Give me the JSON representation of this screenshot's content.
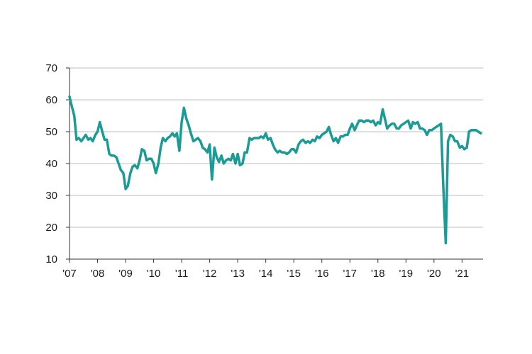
{
  "chart_data": {
    "type": "line",
    "title": "",
    "xlabel": "",
    "ylabel": "",
    "ylim": [
      10,
      70
    ],
    "yticks": [
      10,
      20,
      30,
      40,
      50,
      60,
      70
    ],
    "xlim": [
      2007.0,
      2021.75
    ],
    "xticks": [
      {
        "label": "'07",
        "value": 2007
      },
      {
        "label": "'08",
        "value": 2008
      },
      {
        "label": "'09",
        "value": 2009
      },
      {
        "label": "'10",
        "value": 2010
      },
      {
        "label": "'11",
        "value": 2011
      },
      {
        "label": "'12",
        "value": 2012
      },
      {
        "label": "'13",
        "value": 2013
      },
      {
        "label": "'14",
        "value": 2014
      },
      {
        "label": "'15",
        "value": 2015
      },
      {
        "label": "'16",
        "value": 2016
      },
      {
        "label": "'17",
        "value": 2017
      },
      {
        "label": "'18",
        "value": 2018
      },
      {
        "label": "'19",
        "value": 2019
      },
      {
        "label": "'20",
        "value": 2020
      },
      {
        "label": "'21",
        "value": 2021
      }
    ],
    "grid": true,
    "legend": false,
    "line_color": "#1a9b96",
    "series": [
      {
        "x": [
          2007.0,
          2007.08,
          2007.17,
          2007.25,
          2007.33,
          2007.42,
          2007.5,
          2007.58,
          2007.67,
          2007.75,
          2007.83,
          2007.92,
          2008.0,
          2008.08,
          2008.17,
          2008.25,
          2008.33,
          2008.42,
          2008.5,
          2008.58,
          2008.67,
          2008.75,
          2008.83,
          2008.92,
          2009.0,
          2009.08,
          2009.17,
          2009.25,
          2009.33,
          2009.42,
          2009.5,
          2009.58,
          2009.67,
          2009.75,
          2009.83,
          2009.92,
          2010.0,
          2010.08,
          2010.17,
          2010.25,
          2010.33,
          2010.42,
          2010.5,
          2010.58,
          2010.67,
          2010.75,
          2010.83,
          2010.92,
          2011.0,
          2011.08,
          2011.17,
          2011.25,
          2011.33,
          2011.42,
          2011.5,
          2011.58,
          2011.67,
          2011.75,
          2011.83,
          2011.92,
          2012.0,
          2012.08,
          2012.17,
          2012.25,
          2012.33,
          2012.42,
          2012.5,
          2012.58,
          2012.67,
          2012.75,
          2012.83,
          2012.92,
          2013.0,
          2013.08,
          2013.17,
          2013.25,
          2013.33,
          2013.42,
          2013.5,
          2013.58,
          2013.67,
          2013.75,
          2013.83,
          2013.92,
          2014.0,
          2014.08,
          2014.17,
          2014.25,
          2014.33,
          2014.42,
          2014.5,
          2014.58,
          2014.67,
          2014.75,
          2014.83,
          2014.92,
          2015.0,
          2015.08,
          2015.17,
          2015.25,
          2015.33,
          2015.42,
          2015.5,
          2015.58,
          2015.67,
          2015.75,
          2015.83,
          2015.92,
          2016.0,
          2016.08,
          2016.17,
          2016.25,
          2016.33,
          2016.42,
          2016.5,
          2016.58,
          2016.67,
          2016.75,
          2016.83,
          2016.92,
          2017.0,
          2017.08,
          2017.17,
          2017.25,
          2017.33,
          2017.42,
          2017.5,
          2017.58,
          2017.67,
          2017.75,
          2017.83,
          2017.92,
          2018.0,
          2018.08,
          2018.17,
          2018.25,
          2018.33,
          2018.42,
          2018.5,
          2018.58,
          2018.67,
          2018.75,
          2018.83,
          2018.92,
          2019.0,
          2019.08,
          2019.17,
          2019.25,
          2019.33,
          2019.42,
          2019.5,
          2019.58,
          2019.67,
          2019.75,
          2019.83,
          2019.92,
          2020.0,
          2020.08,
          2020.17,
          2020.25,
          2020.33,
          2020.42,
          2020.5,
          2020.58,
          2020.67,
          2020.75,
          2020.83,
          2020.92,
          2021.0,
          2021.08,
          2021.17,
          2021.25,
          2021.33,
          2021.42,
          2021.5,
          2021.58,
          2021.67
        ],
        "values": [
          61.0,
          58.0,
          55.0,
          47.5,
          48.0,
          47.0,
          48.0,
          49.0,
          47.5,
          48.0,
          47.0,
          49.0,
          50.0,
          53.0,
          50.0,
          47.5,
          47.5,
          43.0,
          42.5,
          42.5,
          42.0,
          40.0,
          38.0,
          37.0,
          32.0,
          33.0,
          37.0,
          39.0,
          39.5,
          38.5,
          41.0,
          44.5,
          44.0,
          41.0,
          41.5,
          41.5,
          40.0,
          37.0,
          40.0,
          45.0,
          48.0,
          47.0,
          48.0,
          48.5,
          49.5,
          48.5,
          49.5,
          44.0,
          53.0,
          57.5,
          54.0,
          52.0,
          49.5,
          47.0,
          47.5,
          48.0,
          47.0,
          45.0,
          44.5,
          43.5,
          46.0,
          35.0,
          45.0,
          42.0,
          40.5,
          42.5,
          40.0,
          41.0,
          41.5,
          41.0,
          43.0,
          40.0,
          43.0,
          39.5,
          40.0,
          43.5,
          43.5,
          48.0,
          47.5,
          48.0,
          48.0,
          48.0,
          48.5,
          48.0,
          49.5,
          47.5,
          48.0,
          46.0,
          44.5,
          43.5,
          44.0,
          43.5,
          43.5,
          43.0,
          43.5,
          44.5,
          44.5,
          43.5,
          46.0,
          47.0,
          47.5,
          46.5,
          47.0,
          46.5,
          47.5,
          47.0,
          48.5,
          48.0,
          49.0,
          49.5,
          50.0,
          51.5,
          49.0,
          47.0,
          48.0,
          46.5,
          48.5,
          48.5,
          49.0,
          49.0,
          51.0,
          52.5,
          50.5,
          52.0,
          53.5,
          53.5,
          53.0,
          53.5,
          53.5,
          53.0,
          53.5,
          52.0,
          53.0,
          52.5,
          57.0,
          54.0,
          51.0,
          52.0,
          52.5,
          52.5,
          51.0,
          51.0,
          52.0,
          52.5,
          53.0,
          53.5,
          51.0,
          53.0,
          52.5,
          53.0,
          51.0,
          51.0,
          50.5,
          49.0,
          50.5,
          50.5,
          51.0,
          51.5,
          52.0,
          52.5,
          33.0,
          15.0,
          47.0,
          49.0,
          48.5,
          47.0,
          47.0,
          45.0,
          45.5,
          44.5,
          45.0,
          50.0,
          50.5,
          50.5,
          50.5,
          50.0,
          49.5
        ]
      }
    ]
  }
}
